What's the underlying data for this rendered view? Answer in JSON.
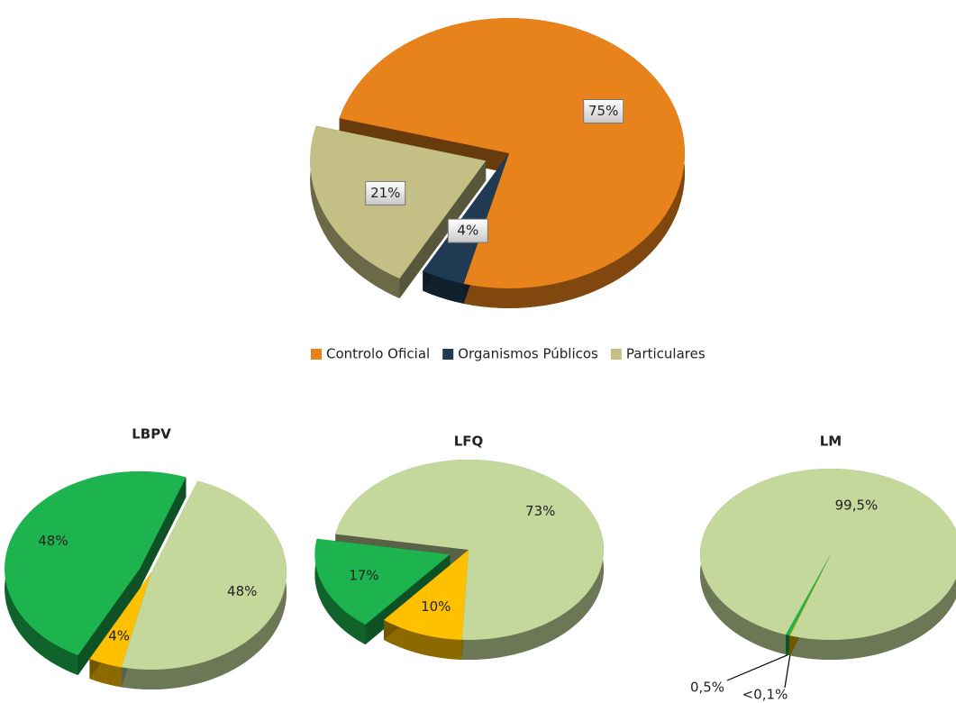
{
  "chart_data": [
    {
      "type": "pie",
      "categories": [
        "Controlo Oficial",
        "Organismos Públicos",
        "Particulares"
      ],
      "values": [
        75,
        4,
        21
      ],
      "value_labels": [
        "75%",
        "4%",
        "21%"
      ],
      "colors": [
        "#e8821a",
        "#1f3a52",
        "#c4bf84"
      ],
      "legend": "bottom"
    },
    {
      "type": "pie",
      "title": "LBPV",
      "values": [
        48,
        4,
        48
      ],
      "value_labels": [
        "48%",
        "4%",
        "48%"
      ],
      "colors": [
        "#1db44f",
        "#ffc000",
        "#c5d89c"
      ]
    },
    {
      "type": "pie",
      "title": "LFQ",
      "values": [
        73,
        17,
        10
      ],
      "value_labels": [
        "73%",
        "17%",
        "10%"
      ],
      "colors": [
        "#c5d89c",
        "#1db44f",
        "#ffc000"
      ]
    },
    {
      "type": "pie",
      "title": "LM",
      "values": [
        99.5,
        0.5,
        0.1
      ],
      "value_labels": [
        "99,5%",
        "0,5%",
        "<0,1%"
      ],
      "colors": [
        "#c5d89c",
        "#1db44f",
        "#ffc000"
      ]
    }
  ]
}
